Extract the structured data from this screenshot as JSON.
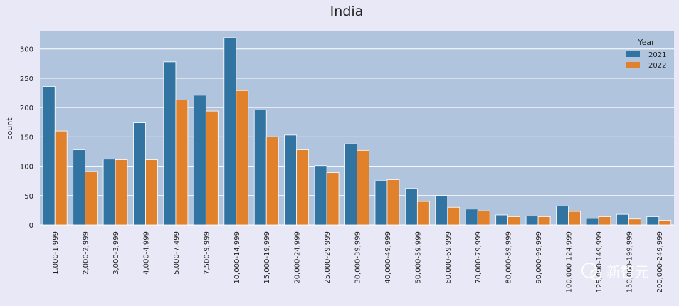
{
  "chart_data": {
    "type": "bar",
    "title": "India",
    "xlabel": "",
    "ylabel": "count",
    "ylim": [
      0,
      330
    ],
    "yticks": [
      0,
      50,
      100,
      150,
      200,
      250,
      300
    ],
    "grid": true,
    "legend": {
      "title": "Year",
      "placement": "top-right"
    },
    "categories": [
      "1,000-1,999",
      "2,000-2,999",
      "3,000-3,999",
      "4,000-4,999",
      "5,000-7,499",
      "7,500-9,999",
      "10,000-14,999",
      "15,000-19,999",
      "20,000-24,999",
      "25,000-29,999",
      "30,000-39,999",
      "40,000-49,999",
      "50,000-59,999",
      "60,000-69,999",
      "70,000-79,999",
      "80,000-89,999",
      "90,000-99,999",
      "100,000-124,999",
      "125,000-149,999",
      "150,000-199,999",
      "200,000-249,999"
    ],
    "series": [
      {
        "name": "2021",
        "color": "#3274a1",
        "values": [
          236,
          128,
          112,
          174,
          278,
          221,
          319,
          196,
          153,
          101,
          138,
          75,
          62,
          50,
          27,
          17,
          15,
          32,
          11,
          18,
          14
        ]
      },
      {
        "name": "2022",
        "color": "#e1812c",
        "values": [
          160,
          91,
          111,
          111,
          213,
          194,
          229,
          150,
          128,
          89,
          127,
          77,
          40,
          30,
          24,
          14,
          14,
          23,
          14,
          10,
          8
        ]
      }
    ],
    "watermark": "新智元"
  }
}
